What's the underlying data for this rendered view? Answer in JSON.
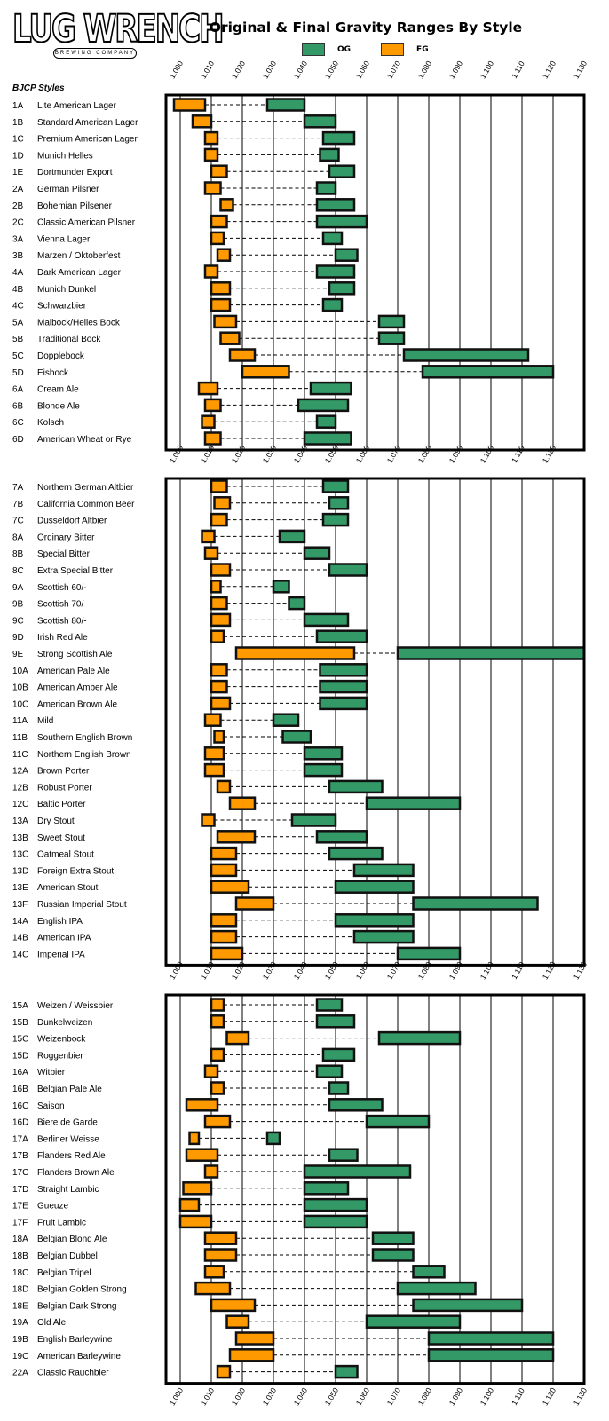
{
  "logo": {
    "name": "LUG WRENCH",
    "subtitle": "BREWING COMPANY"
  },
  "chart_data": {
    "type": "bar",
    "subtype": "floating-range",
    "title": "Original & Final Gravity Ranges By Style",
    "legend": [
      {
        "name": "OG",
        "color": "#339966"
      },
      {
        "name": "FG",
        "color": "#FF9900"
      }
    ],
    "legend_position": "top-center",
    "row_header": "BJCP Styles",
    "xlim": [
      1.0,
      1.13
    ],
    "x_ticks": [
      "1.000",
      "1.010",
      "1.020",
      "1.030",
      "1.040",
      "1.050",
      "1.060",
      "1.070",
      "1.080",
      "1.090",
      "1.100",
      "1.110",
      "1.120",
      "1.130"
    ],
    "tick_label_rows": [
      [
        "1.000",
        "1.010",
        "1.020",
        "1.030",
        "1.040",
        "1.050",
        "1.060",
        "1.070",
        "1.080",
        "1.090",
        "1.100",
        "1.110",
        "1.120",
        "1.130"
      ],
      [
        "1.000",
        "1.010",
        "1.020",
        "1.030",
        "1.040",
        "1.050",
        "1.060",
        "1.070",
        "1.080",
        "1.090",
        "1.100",
        "1.110",
        "1.120"
      ],
      [
        "1.000",
        "1.010",
        "1.020",
        "1.030",
        "1.040",
        "1.050",
        "1.060",
        "1.070",
        "1.080",
        "1.090",
        "1.100",
        "1.110",
        "1.120",
        "1.130"
      ],
      [
        "1.000",
        "1.010",
        "1.020",
        "1.030",
        "1.040",
        "1.050",
        "1.060",
        "1.070",
        "1.080",
        "1.090",
        "1.100",
        "1.110",
        "1.120",
        "1.130"
      ]
    ],
    "grid": true,
    "panels": [
      {
        "styles": [
          {
            "code": "1A",
            "name": "Lite American Lager",
            "fg": [
              0.998,
              1.008
            ],
            "og": [
              1.028,
              1.04
            ]
          },
          {
            "code": "1B",
            "name": "Standard American Lager",
            "fg": [
              1.004,
              1.01
            ],
            "og": [
              1.04,
              1.05
            ]
          },
          {
            "code": "1C",
            "name": "Premium American Lager",
            "fg": [
              1.008,
              1.012
            ],
            "og": [
              1.046,
              1.056
            ]
          },
          {
            "code": "1D",
            "name": "Munich Helles",
            "fg": [
              1.008,
              1.012
            ],
            "og": [
              1.045,
              1.051
            ]
          },
          {
            "code": "1E",
            "name": "Dortmunder Export",
            "fg": [
              1.01,
              1.015
            ],
            "og": [
              1.048,
              1.056
            ]
          },
          {
            "code": "2A",
            "name": "German Pilsner",
            "fg": [
              1.008,
              1.013
            ],
            "og": [
              1.044,
              1.05
            ]
          },
          {
            "code": "2B",
            "name": "Bohemian Pilsener",
            "fg": [
              1.013,
              1.017
            ],
            "og": [
              1.044,
              1.056
            ]
          },
          {
            "code": "2C",
            "name": "Classic American Pilsner",
            "fg": [
              1.01,
              1.015
            ],
            "og": [
              1.044,
              1.06
            ]
          },
          {
            "code": "3A",
            "name": "Vienna Lager",
            "fg": [
              1.01,
              1.014
            ],
            "og": [
              1.046,
              1.052
            ]
          },
          {
            "code": "3B",
            "name": "Marzen / Oktoberfest",
            "fg": [
              1.012,
              1.016
            ],
            "og": [
              1.05,
              1.057
            ]
          },
          {
            "code": "4A",
            "name": "Dark American Lager",
            "fg": [
              1.008,
              1.012
            ],
            "og": [
              1.044,
              1.056
            ]
          },
          {
            "code": "4B",
            "name": "Munich Dunkel",
            "fg": [
              1.01,
              1.016
            ],
            "og": [
              1.048,
              1.056
            ]
          },
          {
            "code": "4C",
            "name": "Schwarzbier",
            "fg": [
              1.01,
              1.016
            ],
            "og": [
              1.046,
              1.052
            ]
          },
          {
            "code": "5A",
            "name": "Maibock/Helles Bock",
            "fg": [
              1.011,
              1.018
            ],
            "og": [
              1.064,
              1.072
            ]
          },
          {
            "code": "5B",
            "name": "Traditional Bock",
            "fg": [
              1.013,
              1.019
            ],
            "og": [
              1.064,
              1.072
            ]
          },
          {
            "code": "5C",
            "name": "Dopplebock",
            "fg": [
              1.016,
              1.024
            ],
            "og": [
              1.072,
              1.112
            ]
          },
          {
            "code": "5D",
            "name": "Eisbock",
            "fg": [
              1.02,
              1.035
            ],
            "og": [
              1.078,
              1.12
            ]
          },
          {
            "code": "6A",
            "name": "Cream Ale",
            "fg": [
              1.006,
              1.012
            ],
            "og": [
              1.042,
              1.055
            ]
          },
          {
            "code": "6B",
            "name": "Blonde Ale",
            "fg": [
              1.008,
              1.013
            ],
            "og": [
              1.038,
              1.054
            ]
          },
          {
            "code": "6C",
            "name": "Kolsch",
            "fg": [
              1.007,
              1.011
            ],
            "og": [
              1.044,
              1.05
            ]
          },
          {
            "code": "6D",
            "name": "American Wheat or Rye",
            "fg": [
              1.008,
              1.013
            ],
            "og": [
              1.04,
              1.055
            ]
          }
        ]
      },
      {
        "styles": [
          {
            "code": "7A",
            "name": "Northern German Altbier",
            "fg": [
              1.01,
              1.015
            ],
            "og": [
              1.046,
              1.054
            ]
          },
          {
            "code": "7B",
            "name": "California Common Beer",
            "fg": [
              1.011,
              1.016
            ],
            "og": [
              1.048,
              1.054
            ]
          },
          {
            "code": "7C",
            "name": "Dusseldorf Altbier",
            "fg": [
              1.01,
              1.015
            ],
            "og": [
              1.046,
              1.054
            ]
          },
          {
            "code": "8A",
            "name": "Ordinary Bitter",
            "fg": [
              1.007,
              1.011
            ],
            "og": [
              1.032,
              1.04
            ]
          },
          {
            "code": "8B",
            "name": "Special Bitter",
            "fg": [
              1.008,
              1.012
            ],
            "og": [
              1.04,
              1.048
            ]
          },
          {
            "code": "8C",
            "name": "Extra Special Bitter",
            "fg": [
              1.01,
              1.016
            ],
            "og": [
              1.048,
              1.06
            ]
          },
          {
            "code": "9A",
            "name": "Scottish 60/-",
            "fg": [
              1.01,
              1.013
            ],
            "og": [
              1.03,
              1.035
            ]
          },
          {
            "code": "9B",
            "name": "Scottish 70/-",
            "fg": [
              1.01,
              1.015
            ],
            "og": [
              1.035,
              1.04
            ]
          },
          {
            "code": "9C",
            "name": "Scottish 80/-",
            "fg": [
              1.01,
              1.016
            ],
            "og": [
              1.04,
              1.054
            ]
          },
          {
            "code": "9D",
            "name": "Irish Red Ale",
            "fg": [
              1.01,
              1.014
            ],
            "og": [
              1.044,
              1.06
            ]
          },
          {
            "code": "9E",
            "name": "Strong Scottish Ale",
            "fg": [
              1.018,
              1.056
            ],
            "og": [
              1.07,
              1.13
            ]
          },
          {
            "code": "10A",
            "name": "American Pale Ale",
            "fg": [
              1.01,
              1.015
            ],
            "og": [
              1.045,
              1.06
            ]
          },
          {
            "code": "10B",
            "name": "American Amber Ale",
            "fg": [
              1.01,
              1.015
            ],
            "og": [
              1.045,
              1.06
            ]
          },
          {
            "code": "10C",
            "name": "American Brown Ale",
            "fg": [
              1.01,
              1.016
            ],
            "og": [
              1.045,
              1.06
            ]
          },
          {
            "code": "11A",
            "name": "Mild",
            "fg": [
              1.008,
              1.013
            ],
            "og": [
              1.03,
              1.038
            ]
          },
          {
            "code": "11B",
            "name": "Southern English Brown",
            "fg": [
              1.011,
              1.014
            ],
            "og": [
              1.033,
              1.042
            ]
          },
          {
            "code": "11C",
            "name": "Northern English Brown",
            "fg": [
              1.008,
              1.014
            ],
            "og": [
              1.04,
              1.052
            ]
          },
          {
            "code": "12A",
            "name": "Brown Porter",
            "fg": [
              1.008,
              1.014
            ],
            "og": [
              1.04,
              1.052
            ]
          },
          {
            "code": "12B",
            "name": "Robust Porter",
            "fg": [
              1.012,
              1.016
            ],
            "og": [
              1.048,
              1.065
            ]
          },
          {
            "code": "12C",
            "name": "Baltic Porter",
            "fg": [
              1.016,
              1.024
            ],
            "og": [
              1.06,
              1.09
            ]
          },
          {
            "code": "13A",
            "name": "Dry Stout",
            "fg": [
              1.007,
              1.011
            ],
            "og": [
              1.036,
              1.05
            ]
          },
          {
            "code": "13B",
            "name": "Sweet Stout",
            "fg": [
              1.012,
              1.024
            ],
            "og": [
              1.044,
              1.06
            ]
          },
          {
            "code": "13C",
            "name": "Oatmeal Stout",
            "fg": [
              1.01,
              1.018
            ],
            "og": [
              1.048,
              1.065
            ]
          },
          {
            "code": "13D",
            "name": "Foreign Extra Stout",
            "fg": [
              1.01,
              1.018
            ],
            "og": [
              1.056,
              1.075
            ]
          },
          {
            "code": "13E",
            "name": "American Stout",
            "fg": [
              1.01,
              1.022
            ],
            "og": [
              1.05,
              1.075
            ]
          },
          {
            "code": "13F",
            "name": "Russian Imperial Stout",
            "fg": [
              1.018,
              1.03
            ],
            "og": [
              1.075,
              1.115
            ]
          },
          {
            "code": "14A",
            "name": "English IPA",
            "fg": [
              1.01,
              1.018
            ],
            "og": [
              1.05,
              1.075
            ]
          },
          {
            "code": "14B",
            "name": "American IPA",
            "fg": [
              1.01,
              1.018
            ],
            "og": [
              1.056,
              1.075
            ]
          },
          {
            "code": "14C",
            "name": "Imperial IPA",
            "fg": [
              1.01,
              1.02
            ],
            "og": [
              1.07,
              1.09
            ]
          }
        ]
      },
      {
        "styles": [
          {
            "code": "15A",
            "name": "Weizen / Weissbier",
            "fg": [
              1.01,
              1.014
            ],
            "og": [
              1.044,
              1.052
            ]
          },
          {
            "code": "15B",
            "name": "Dunkelweizen",
            "fg": [
              1.01,
              1.014
            ],
            "og": [
              1.044,
              1.056
            ]
          },
          {
            "code": "15C",
            "name": "Weizenbock",
            "fg": [
              1.015,
              1.022
            ],
            "og": [
              1.064,
              1.09
            ]
          },
          {
            "code": "15D",
            "name": "Roggenbier",
            "fg": [
              1.01,
              1.014
            ],
            "og": [
              1.046,
              1.056
            ]
          },
          {
            "code": "16A",
            "name": "Witbier",
            "fg": [
              1.008,
              1.012
            ],
            "og": [
              1.044,
              1.052
            ]
          },
          {
            "code": "16B",
            "name": "Belgian Pale Ale",
            "fg": [
              1.01,
              1.014
            ],
            "og": [
              1.048,
              1.054
            ]
          },
          {
            "code": "16C",
            "name": "Saison",
            "fg": [
              1.002,
              1.012
            ],
            "og": [
              1.048,
              1.065
            ]
          },
          {
            "code": "16D",
            "name": "Biere de Garde",
            "fg": [
              1.008,
              1.016
            ],
            "og": [
              1.06,
              1.08
            ]
          },
          {
            "code": "17A",
            "name": "Berliner Weisse",
            "fg": [
              1.003,
              1.006
            ],
            "og": [
              1.028,
              1.032
            ]
          },
          {
            "code": "17B",
            "name": "Flanders Red Ale",
            "fg": [
              1.002,
              1.012
            ],
            "og": [
              1.048,
              1.057
            ]
          },
          {
            "code": "17C",
            "name": "Flanders Brown Ale",
            "fg": [
              1.008,
              1.012
            ],
            "og": [
              1.04,
              1.074
            ]
          },
          {
            "code": "17D",
            "name": "Straight Lambic",
            "fg": [
              1.001,
              1.01
            ],
            "og": [
              1.04,
              1.054
            ]
          },
          {
            "code": "17E",
            "name": "Gueuze",
            "fg": [
              1.0,
              1.006
            ],
            "og": [
              1.04,
              1.06
            ]
          },
          {
            "code": "17F",
            "name": "Fruit Lambic",
            "fg": [
              1.0,
              1.01
            ],
            "og": [
              1.04,
              1.06
            ]
          },
          {
            "code": "18A",
            "name": "Belgian Blond Ale",
            "fg": [
              1.008,
              1.018
            ],
            "og": [
              1.062,
              1.075
            ]
          },
          {
            "code": "18B",
            "name": "Belgian Dubbel",
            "fg": [
              1.008,
              1.018
            ],
            "og": [
              1.062,
              1.075
            ]
          },
          {
            "code": "18C",
            "name": "Belgian Tripel",
            "fg": [
              1.008,
              1.014
            ],
            "og": [
              1.075,
              1.085
            ]
          },
          {
            "code": "18D",
            "name": "Belgian Golden Strong",
            "fg": [
              1.005,
              1.016
            ],
            "og": [
              1.07,
              1.095
            ]
          },
          {
            "code": "18E",
            "name": "Belgian Dark Strong",
            "fg": [
              1.01,
              1.024
            ],
            "og": [
              1.075,
              1.11
            ]
          },
          {
            "code": "19A",
            "name": "Old Ale",
            "fg": [
              1.015,
              1.022
            ],
            "og": [
              1.06,
              1.09
            ]
          },
          {
            "code": "19B",
            "name": "English Barleywine",
            "fg": [
              1.018,
              1.03
            ],
            "og": [
              1.08,
              1.12
            ]
          },
          {
            "code": "19C",
            "name": "American Barleywine",
            "fg": [
              1.016,
              1.03
            ],
            "og": [
              1.08,
              1.12
            ]
          },
          {
            "code": "22A",
            "name": "Classic Rauchbier",
            "fg": [
              1.012,
              1.016
            ],
            "og": [
              1.05,
              1.057
            ]
          }
        ]
      }
    ]
  }
}
